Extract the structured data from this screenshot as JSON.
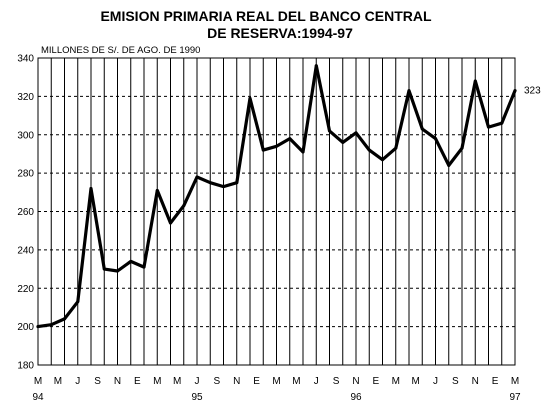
{
  "chart_data": {
    "type": "line",
    "title_lines": [
      "EMISION PRIMARIA REAL DEL BANCO CENTRAL",
      "DE RESERVA:1994-97"
    ],
    "units_label": "MILLONES DE S/. DE AGO. DE 1990",
    "ylim": [
      180,
      340
    ],
    "yticks": [
      180,
      200,
      220,
      240,
      260,
      280,
      300,
      320,
      340
    ],
    "month_labels": [
      "M",
      "M",
      "J",
      "S",
      "N",
      "E",
      "M",
      "M",
      "J",
      "S",
      "N",
      "E",
      "M",
      "M",
      "J",
      "S",
      "N",
      "E",
      "M",
      "M",
      "J",
      "S",
      "N",
      "E",
      "M"
    ],
    "year_labels": [
      {
        "index": 0,
        "label": "94"
      },
      {
        "index": 12,
        "label": "95"
      },
      {
        "index": 24,
        "label": "96"
      },
      {
        "index": 36,
        "label": "97"
      }
    ],
    "grid": true,
    "series": [
      {
        "values": [
          200,
          201,
          204,
          213,
          272,
          230,
          229,
          234,
          231,
          271,
          254,
          263,
          278,
          275,
          273,
          275,
          319,
          292,
          294,
          298,
          291,
          336,
          302,
          296,
          301,
          292,
          287,
          293,
          323,
          303,
          298,
          284,
          293,
          328,
          304,
          306,
          323
        ]
      }
    ],
    "end_label": "323",
    "line_color": "#000000"
  }
}
